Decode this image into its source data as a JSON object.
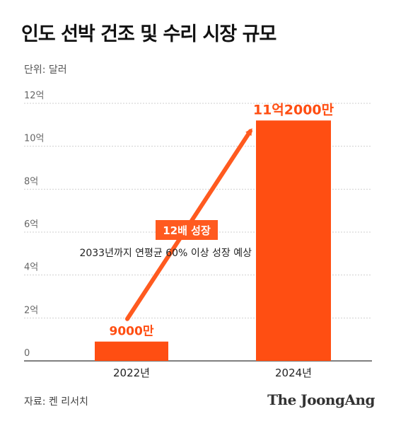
{
  "title": "인도 선박 건조 및 수리 시장 규모",
  "unit_label": "단위: 달러",
  "source": "자료: 켄 리서치",
  "brand": "The JoongAng",
  "annotation": {
    "badge": "12배 성장",
    "note": "2033년까지 연평균 60% 이상 성장 예상"
  },
  "colors": {
    "bar": "#ff4e12",
    "arrow": "#ff5a1f",
    "value_label": "#ff4e12",
    "grid": "#cfcfcf",
    "badge_bg": "#ff5a1f",
    "badge_text": "#ffffff"
  },
  "chart_data": {
    "type": "bar",
    "categories": [
      "2022년",
      "2024년"
    ],
    "values": [
      0.9,
      11.2
    ],
    "value_labels": [
      "9000만",
      "11억2000만"
    ],
    "ylim": [
      0,
      12
    ],
    "yticks": [
      0,
      2,
      4,
      6,
      8,
      10,
      12
    ],
    "ytick_labels": [
      "0",
      "2억",
      "4억",
      "6억",
      "8억",
      "10억",
      "12억"
    ],
    "grid": true
  }
}
